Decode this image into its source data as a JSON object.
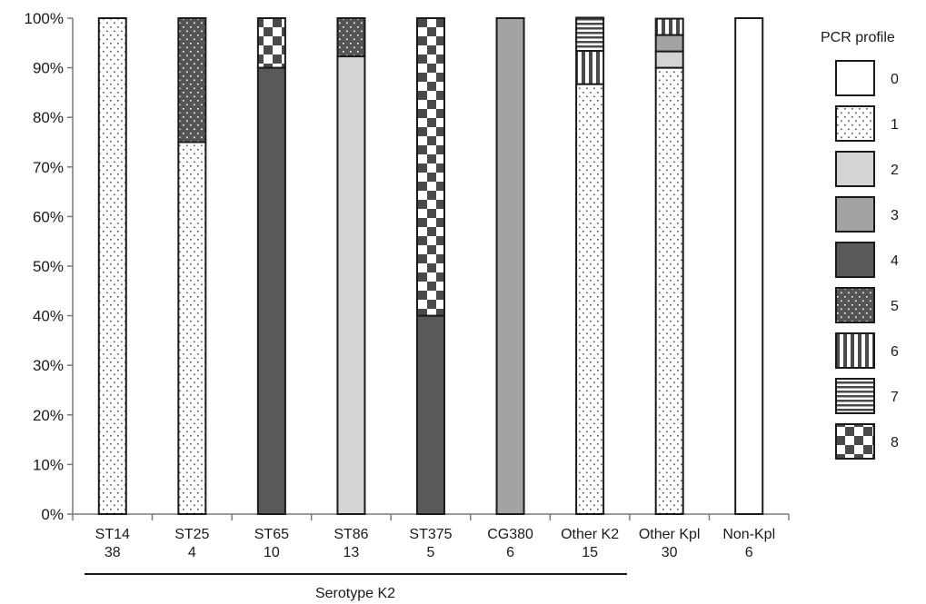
{
  "chart_data": {
    "type": "bar",
    "stacked": true,
    "normalized": true,
    "categories": [
      [
        "ST14",
        "38"
      ],
      [
        "ST25",
        "4"
      ],
      [
        "ST65",
        "10"
      ],
      [
        "ST86",
        "13"
      ],
      [
        "ST375",
        "5"
      ],
      [
        "CG380",
        "6"
      ],
      [
        "Other K2",
        "15"
      ],
      [
        "Other Kpl",
        "30"
      ],
      [
        "Non-Kpl",
        "6"
      ]
    ],
    "series": [
      {
        "name": "0",
        "pattern": "white",
        "values": [
          0,
          0,
          0,
          0,
          0,
          0,
          0,
          0,
          100
        ]
      },
      {
        "name": "1",
        "pattern": "dots",
        "values": [
          100,
          75,
          0,
          0,
          0,
          0,
          86.7,
          90,
          0
        ]
      },
      {
        "name": "2",
        "pattern": "light-gray",
        "values": [
          0,
          0,
          0,
          92.3,
          0,
          0,
          0,
          3.3,
          0
        ]
      },
      {
        "name": "3",
        "pattern": "mid-gray",
        "values": [
          0,
          0,
          0,
          0,
          0,
          100,
          0,
          3.3,
          0
        ]
      },
      {
        "name": "4",
        "pattern": "dark-gray",
        "values": [
          0,
          0,
          90,
          0,
          40,
          0,
          0,
          0,
          0
        ]
      },
      {
        "name": "5",
        "pattern": "dark-dots",
        "values": [
          0,
          25,
          0,
          7.7,
          0,
          0,
          0,
          0,
          0
        ]
      },
      {
        "name": "6",
        "pattern": "vertical",
        "values": [
          0,
          0,
          0,
          0,
          0,
          0,
          6.7,
          3.3,
          0
        ]
      },
      {
        "name": "7",
        "pattern": "horizontal",
        "values": [
          0,
          0,
          0,
          0,
          0,
          0,
          6.7,
          0,
          0
        ]
      },
      {
        "name": "8",
        "pattern": "checker",
        "values": [
          0,
          0,
          10,
          0,
          60,
          0,
          0,
          0,
          0
        ]
      }
    ],
    "y_ticks": [
      "0%",
      "10%",
      "20%",
      "30%",
      "40%",
      "50%",
      "60%",
      "70%",
      "80%",
      "90%",
      "100%"
    ],
    "ylim": [
      0,
      100
    ],
    "legend_title": "PCR profile",
    "legend_position": "right",
    "group_label": "Serotype K2",
    "grid": false
  }
}
